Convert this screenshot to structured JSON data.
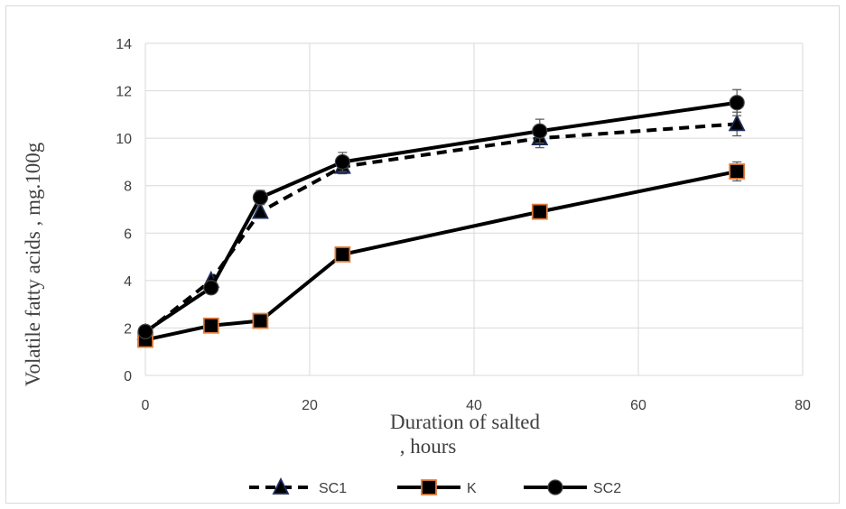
{
  "chart_data": {
    "type": "line",
    "title": "",
    "xlabel_line1": "Duration of salted",
    "xlabel_line2": ", hours",
    "ylabel": "Volatile fatty acids , mg.100g",
    "xlim": [
      0,
      80
    ],
    "ylim": [
      0,
      14
    ],
    "x_ticks": [
      0,
      20,
      40,
      60,
      80
    ],
    "y_ticks": [
      0,
      2,
      4,
      6,
      8,
      10,
      12,
      14
    ],
    "grid": true,
    "legend_position": "bottom",
    "series": [
      {
        "name": "SC1",
        "marker": "triangle",
        "line_style": "dashed",
        "color": "#000000",
        "marker_color": "#1f2d5c",
        "x": [
          0,
          8,
          14,
          24,
          48,
          72
        ],
        "y": [
          1.8,
          4.0,
          6.9,
          8.8,
          10.0,
          10.6
        ],
        "error": [
          0,
          0,
          0,
          0.3,
          0.4,
          0.5
        ]
      },
      {
        "name": "K",
        "marker": "square",
        "line_style": "solid",
        "color": "#000000",
        "marker_color": "#e07b39",
        "x": [
          0,
          8,
          14,
          24,
          48,
          72
        ],
        "y": [
          1.5,
          2.1,
          2.3,
          5.1,
          6.9,
          8.6
        ],
        "error": [
          0,
          0,
          0,
          0,
          0,
          0.4
        ]
      },
      {
        "name": "SC2",
        "marker": "circle",
        "line_style": "solid",
        "color": "#000000",
        "marker_color": "#000000",
        "x": [
          0,
          8,
          14,
          24,
          48,
          72
        ],
        "y": [
          1.85,
          3.7,
          7.5,
          9.0,
          10.3,
          11.5
        ],
        "error": [
          0,
          0,
          0.3,
          0.4,
          0.5,
          0.55
        ]
      }
    ]
  }
}
